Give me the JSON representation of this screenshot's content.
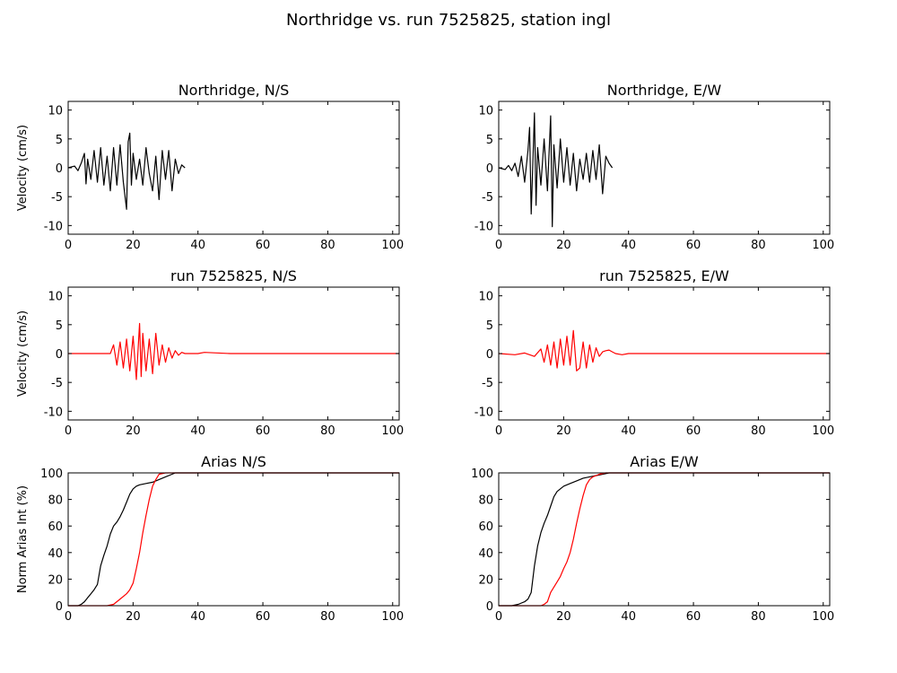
{
  "suptitle": "Northridge vs. run 7525825, station ingl",
  "colors": {
    "recorded": "#000000",
    "simulated": "#ff0000"
  },
  "chart_data": [
    {
      "type": "line",
      "title": "Northridge, N/S",
      "ylabel": "Velocity (cm/s)",
      "xlim": [
        0,
        102
      ],
      "ylim": [
        -11.5,
        11.5
      ],
      "xticks": [
        "0",
        "20",
        "40",
        "60",
        "80",
        "100"
      ],
      "yticks": [
        "10",
        "5",
        "0",
        "-5",
        "-10"
      ],
      "series": [
        {
          "color": "#000000",
          "x": [
            0,
            2,
            3,
            4,
            5,
            5.5,
            6,
            7,
            8,
            9,
            10,
            11,
            12,
            13,
            14,
            15,
            16,
            17,
            18,
            18.5,
            19,
            19.5,
            20,
            21,
            22,
            23,
            24,
            25,
            26,
            27,
            28,
            29,
            30,
            31,
            32,
            33,
            34,
            35,
            36
          ],
          "y": [
            0,
            0.3,
            -0.5,
            0.8,
            2.5,
            -2.8,
            1.5,
            -2.0,
            3.0,
            -2.5,
            3.5,
            -3.0,
            2.0,
            -4.0,
            3.5,
            -3.0,
            4.0,
            -2.5,
            -7.2,
            4.5,
            6.0,
            -3.0,
            2.5,
            -2.0,
            1.5,
            -3.0,
            3.5,
            -1.0,
            -4.0,
            2.0,
            -5.5,
            3.0,
            -2.0,
            3.0,
            -4.0,
            1.5,
            -1.0,
            0.5,
            0
          ]
        }
      ]
    },
    {
      "type": "line",
      "title": "Northridge, E/W",
      "ylabel": "",
      "xlim": [
        0,
        102
      ],
      "ylim": [
        -11.5,
        11.5
      ],
      "xticks": [
        "0",
        "20",
        "40",
        "60",
        "80",
        "100"
      ],
      "yticks": [
        "10",
        "5",
        "0",
        "-5",
        "-10"
      ],
      "series": [
        {
          "color": "#000000",
          "x": [
            0,
            2,
            3,
            4,
            5,
            6,
            7,
            8,
            9,
            9.5,
            10,
            11,
            11.5,
            12,
            13,
            14,
            15,
            16,
            16.5,
            17,
            18,
            19,
            20,
            21,
            22,
            23,
            24,
            25,
            26,
            27,
            28,
            29,
            30,
            31,
            32,
            33,
            34,
            35
          ],
          "y": [
            0,
            -0.3,
            0.4,
            -0.5,
            0.8,
            -1.5,
            2.0,
            -2.5,
            3.0,
            7.0,
            -8.0,
            9.5,
            -6.5,
            3.5,
            -3.0,
            5.0,
            -4.0,
            9.0,
            -10.2,
            4.0,
            -3.5,
            5.0,
            -2.5,
            3.5,
            -3.0,
            2.5,
            -4.0,
            1.5,
            -2.0,
            2.5,
            -2.5,
            3.0,
            -2.0,
            4.0,
            -4.5,
            2.0,
            0.8,
            0
          ]
        }
      ]
    },
    {
      "type": "line",
      "title": "run 7525825, N/S",
      "ylabel": "Velocity (cm/s)",
      "xlim": [
        0,
        102
      ],
      "ylim": [
        -11.5,
        11.5
      ],
      "xticks": [
        "0",
        "20",
        "40",
        "60",
        "80",
        "100"
      ],
      "yticks": [
        "10",
        "5",
        "0",
        "-5",
        "-10"
      ],
      "series": [
        {
          "color": "#ff0000",
          "x": [
            0,
            10,
            13,
            14,
            15,
            16,
            17,
            18,
            19,
            20,
            21,
            22,
            22.5,
            23,
            24,
            25,
            26,
            27,
            28,
            29,
            30,
            31,
            32,
            33,
            34,
            35,
            36,
            40,
            42,
            50,
            60,
            80,
            102
          ],
          "y": [
            0,
            0,
            0,
            1.5,
            -2.0,
            2.0,
            -2.5,
            2.5,
            -3.0,
            3.0,
            -4.5,
            5.2,
            -4.0,
            3.5,
            -3.0,
            2.5,
            -3.5,
            3.5,
            -2.0,
            1.5,
            -1.5,
            1.0,
            -0.8,
            0.5,
            -0.3,
            0.2,
            0,
            0,
            0.2,
            0,
            0,
            0,
            0
          ]
        }
      ]
    },
    {
      "type": "line",
      "title": "run 7525825, E/W",
      "ylabel": "",
      "xlim": [
        0,
        102
      ],
      "ylim": [
        -11.5,
        11.5
      ],
      "xticks": [
        "0",
        "20",
        "40",
        "60",
        "80",
        "100"
      ],
      "yticks": [
        "10",
        "5",
        "0",
        "-5",
        "-10"
      ],
      "series": [
        {
          "color": "#ff0000",
          "x": [
            0,
            5,
            8,
            11,
            13,
            14,
            15,
            16,
            17,
            18,
            19,
            20,
            21,
            22,
            23,
            24,
            25,
            26,
            27,
            28,
            29,
            30,
            31,
            32,
            33,
            34,
            35,
            36,
            38,
            40,
            50,
            102
          ],
          "y": [
            0,
            -0.2,
            0.1,
            -0.5,
            0.8,
            -1.5,
            1.5,
            -2.0,
            2.0,
            -2.5,
            2.5,
            -2.0,
            3.0,
            -2.0,
            4.0,
            -3.0,
            -2.5,
            2.0,
            -2.5,
            1.5,
            -1.5,
            1.0,
            -0.5,
            0.3,
            0.5,
            0.6,
            0.3,
            0,
            -0.2,
            0,
            0,
            0
          ]
        }
      ]
    },
    {
      "type": "line",
      "title": "Arias N/S",
      "ylabel": "Norm Arias Int (%)",
      "xlim": [
        0,
        102
      ],
      "ylim": [
        0,
        100
      ],
      "xticks": [
        "0",
        "20",
        "40",
        "60",
        "80",
        "100"
      ],
      "yticks": [
        "100",
        "80",
        "60",
        "40",
        "20",
        "0"
      ],
      "series": [
        {
          "color": "#000000",
          "x": [
            0,
            3,
            4,
            5,
            6,
            7,
            8,
            9,
            10,
            11,
            12,
            13,
            14,
            15,
            16,
            17,
            18,
            19,
            20,
            21,
            22,
            24,
            26,
            28,
            30,
            32,
            33,
            102
          ],
          "y": [
            0,
            0,
            1,
            3,
            6,
            9,
            12,
            16,
            30,
            38,
            45,
            54,
            60,
            63,
            67,
            72,
            78,
            84,
            88,
            90,
            91,
            92,
            93,
            95,
            97,
            99,
            100,
            100
          ]
        }
      ],
      "series2": [
        {
          "color": "#ff0000",
          "x": [
            0,
            10,
            12,
            14,
            16,
            18,
            19,
            20,
            21,
            22,
            23,
            24,
            25,
            26,
            27,
            28,
            30,
            102
          ],
          "y": [
            0,
            0,
            0,
            1,
            5,
            9,
            12,
            17,
            28,
            40,
            55,
            68,
            80,
            90,
            95,
            99,
            100,
            100
          ]
        }
      ]
    },
    {
      "type": "line",
      "title": "Arias E/W",
      "ylabel": "",
      "xlim": [
        0,
        102
      ],
      "ylim": [
        0,
        100
      ],
      "xticks": [
        "0",
        "20",
        "40",
        "60",
        "80",
        "100"
      ],
      "yticks": [
        "100",
        "80",
        "60",
        "40",
        "20",
        "0"
      ],
      "series": [
        {
          "color": "#000000",
          "x": [
            0,
            4,
            6,
            8,
            9,
            10,
            11,
            12,
            13,
            14,
            15,
            16,
            17,
            18,
            19,
            20,
            22,
            24,
            26,
            28,
            30,
            32,
            34,
            102
          ],
          "y": [
            0,
            0,
            1,
            3,
            5,
            10,
            30,
            45,
            55,
            62,
            68,
            75,
            82,
            86,
            88,
            90,
            92,
            94,
            96,
            97,
            98,
            99,
            100,
            100
          ]
        }
      ],
      "series2": [
        {
          "color": "#ff0000",
          "x": [
            0,
            13,
            14,
            15,
            16,
            18,
            19,
            20,
            21,
            22,
            23,
            24,
            25,
            26,
            27,
            28,
            29,
            30,
            31,
            33,
            102
          ],
          "y": [
            0,
            0,
            1,
            3,
            10,
            18,
            22,
            28,
            33,
            40,
            50,
            62,
            73,
            83,
            91,
            95,
            97,
            98,
            99,
            100,
            100
          ]
        }
      ]
    }
  ]
}
